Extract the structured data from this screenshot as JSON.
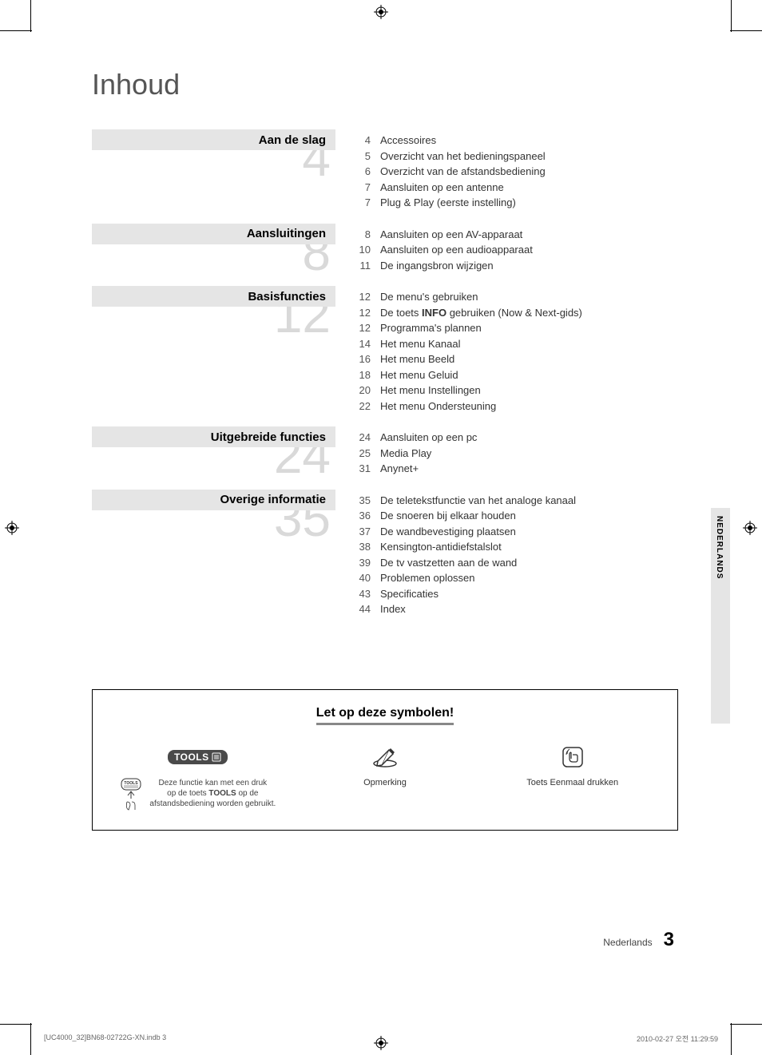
{
  "title": "Inhoud",
  "sections": [
    {
      "header": "Aan de slag",
      "number": "4",
      "items": [
        {
          "page": "4",
          "title": "Accessoires"
        },
        {
          "page": "5",
          "title": "Overzicht van het bedieningspaneel"
        },
        {
          "page": "6",
          "title": "Overzicht van de afstandsbediening"
        },
        {
          "page": "7",
          "title": "Aansluiten op een antenne"
        },
        {
          "page": "7",
          "title": "Plug & Play (eerste instelling)"
        }
      ]
    },
    {
      "header": "Aansluitingen",
      "number": "8",
      "items": [
        {
          "page": "8",
          "title": "Aansluiten op een AV-apparaat"
        },
        {
          "page": "10",
          "title": "Aansluiten op een audioapparaat"
        },
        {
          "page": "11",
          "title": "De ingangsbron wijzigen"
        }
      ]
    },
    {
      "header": "Basisfuncties",
      "number": "12",
      "items": [
        {
          "page": "12",
          "title": "De menu's gebruiken"
        },
        {
          "page": "12",
          "title_pre": "De toets ",
          "title_bold": "INFO",
          "title_post": " gebruiken (Now & Next-gids)"
        },
        {
          "page": "12",
          "title": "Programma's plannen"
        },
        {
          "page": "14",
          "title": "Het menu Kanaal"
        },
        {
          "page": "16",
          "title": "Het menu Beeld"
        },
        {
          "page": "18",
          "title": "Het menu Geluid"
        },
        {
          "page": "20",
          "title": "Het menu Instellingen"
        },
        {
          "page": "22",
          "title": "Het menu Ondersteuning"
        }
      ]
    },
    {
      "header": "Uitgebreide functies",
      "number": "24",
      "items": [
        {
          "page": "24",
          "title": "Aansluiten op een pc"
        },
        {
          "page": "25",
          "title": "Media Play"
        },
        {
          "page": "31",
          "title": "Anynet+"
        }
      ]
    },
    {
      "header": "Overige informatie",
      "number": "35",
      "items": [
        {
          "page": "35",
          "title": "De teletekstfunctie van het analoge kanaal"
        },
        {
          "page": "36",
          "title": "De snoeren bij elkaar houden"
        },
        {
          "page": "37",
          "title": "De wandbevestiging plaatsen"
        },
        {
          "page": "38",
          "title": "Kensington-antidiefstalslot"
        },
        {
          "page": "39",
          "title": "De tv vastzetten aan de wand"
        },
        {
          "page": "40",
          "title": "Problemen oplossen"
        },
        {
          "page": "43",
          "title": "Specificaties"
        },
        {
          "page": "44",
          "title": "Index"
        }
      ]
    }
  ],
  "side_tab": "NEDERLANDS",
  "symbols": {
    "title": "Let op deze symbolen!",
    "tools_badge": "TOOLS",
    "tools_desc_1": "Deze functie kan met een druk",
    "tools_desc_2_pre": "op de toets ",
    "tools_desc_2_bold": "TOOLS",
    "tools_desc_2_post": " op de",
    "tools_desc_3": "afstandsbediening worden gebruikt.",
    "note_label": "Opmerking",
    "press_label": "Toets Eenmaal drukken"
  },
  "footer": {
    "lang": "Nederlands",
    "page": "3"
  },
  "print_footer": {
    "left": "[UC4000_32]BN68-02722G-XN.indb   3",
    "right": "2010-02-27   오전 11:29:59"
  },
  "colors": {
    "section_bar": "#e5e5e5",
    "section_number": "#d9d9d9",
    "tools_badge_bg": "#4a4a4a"
  }
}
